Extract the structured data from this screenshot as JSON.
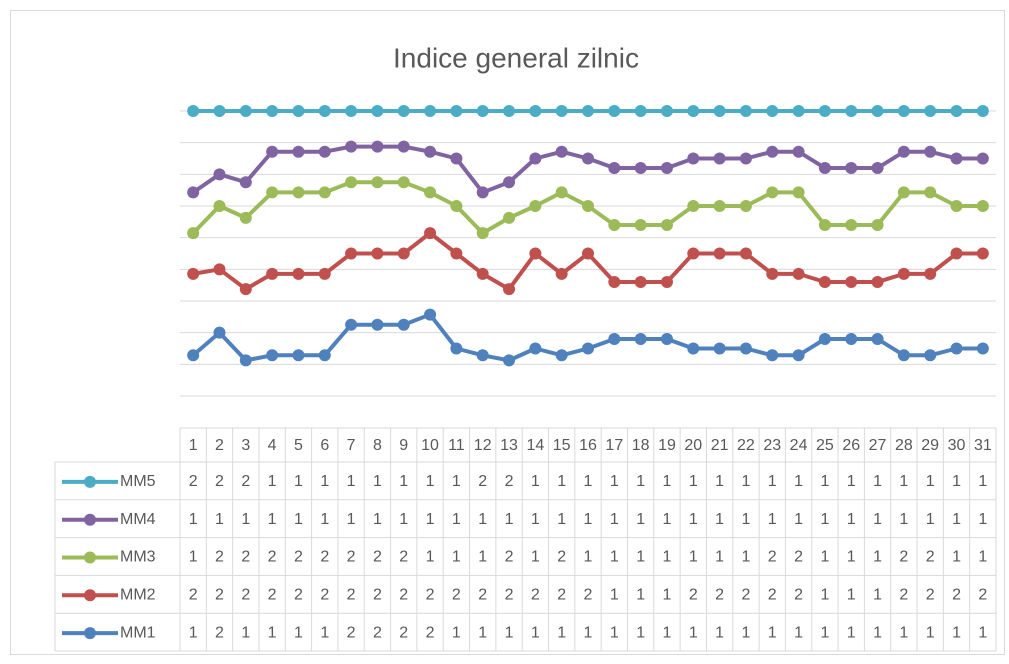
{
  "chart_data": {
    "type": "line",
    "stacking": "percent",
    "title": "Indice general zilnic",
    "categories": [
      "1",
      "2",
      "3",
      "4",
      "5",
      "6",
      "7",
      "8",
      "9",
      "10",
      "11",
      "12",
      "13",
      "14",
      "15",
      "16",
      "17",
      "18",
      "19",
      "20",
      "21",
      "22",
      "23",
      "24",
      "25",
      "26",
      "27",
      "28",
      "29",
      "30",
      "31"
    ],
    "ylim": [
      0,
      100
    ],
    "grid": true,
    "series": [
      {
        "name": "MM1",
        "color": "#4f81bd",
        "values": [
          1,
          2,
          1,
          1,
          1,
          1,
          2,
          2,
          2,
          2,
          1,
          1,
          1,
          1,
          1,
          1,
          1,
          1,
          1,
          1,
          1,
          1,
          1,
          1,
          1,
          1,
          1,
          1,
          1,
          1,
          1
        ]
      },
      {
        "name": "MM2",
        "color": "#c0504d",
        "values": [
          2,
          2,
          2,
          2,
          2,
          2,
          2,
          2,
          2,
          2,
          2,
          2,
          2,
          2,
          2,
          2,
          1,
          1,
          1,
          2,
          2,
          2,
          2,
          2,
          1,
          1,
          1,
          2,
          2,
          2,
          2
        ]
      },
      {
        "name": "MM3",
        "color": "#9bbb59",
        "values": [
          1,
          2,
          2,
          2,
          2,
          2,
          2,
          2,
          2,
          1,
          1,
          1,
          2,
          1,
          2,
          1,
          1,
          1,
          1,
          1,
          1,
          1,
          2,
          2,
          1,
          1,
          1,
          2,
          2,
          1,
          1
        ]
      },
      {
        "name": "MM4",
        "color": "#8064a2",
        "values": [
          1,
          1,
          1,
          1,
          1,
          1,
          1,
          1,
          1,
          1,
          1,
          1,
          1,
          1,
          1,
          1,
          1,
          1,
          1,
          1,
          1,
          1,
          1,
          1,
          1,
          1,
          1,
          1,
          1,
          1,
          1
        ]
      },
      {
        "name": "MM5",
        "color": "#4bacc6",
        "values": [
          2,
          2,
          2,
          1,
          1,
          1,
          1,
          1,
          1,
          1,
          1,
          2,
          2,
          1,
          1,
          1,
          1,
          1,
          1,
          1,
          1,
          1,
          1,
          1,
          1,
          1,
          1,
          1,
          1,
          1,
          1
        ]
      }
    ]
  }
}
